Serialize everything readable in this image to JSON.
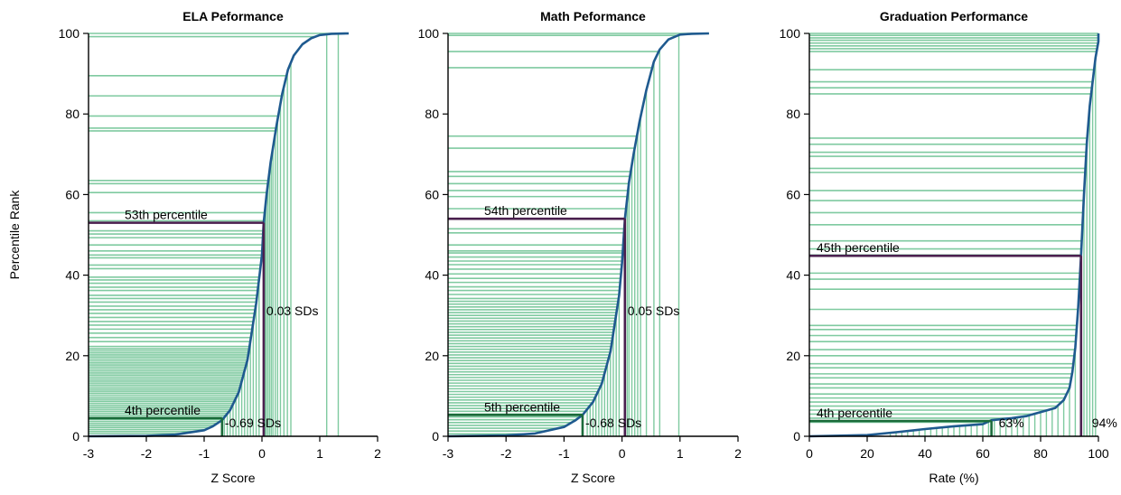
{
  "figure": {
    "ylabel": "Percentile Rank",
    "colors": {
      "hline": "#7fcaa0",
      "vline": "#7fcaa0",
      "curve": "#1f5a8f",
      "markerTop": "#4a1f4e",
      "markerBottom": "#1a6b3a",
      "axis": "#000000"
    }
  },
  "chart_data": [
    {
      "type": "line",
      "title": "ELA Peformance",
      "xlabel": "Z Score",
      "ylabel": "Percentile Rank",
      "xlim": [
        -3,
        2
      ],
      "ylim": [
        0,
        100
      ],
      "xticks": [
        -3,
        -2,
        -1,
        0,
        1,
        2
      ],
      "yticks": [
        0,
        20,
        40,
        60,
        80,
        100
      ],
      "curve": [
        [
          -3,
          0
        ],
        [
          -2,
          0.1
        ],
        [
          -1.5,
          0.4
        ],
        [
          -1.0,
          1.5
        ],
        [
          -0.85,
          2.5
        ],
        [
          -0.69,
          4
        ],
        [
          -0.55,
          6.5
        ],
        [
          -0.4,
          11
        ],
        [
          -0.25,
          19
        ],
        [
          -0.1,
          33
        ],
        [
          0,
          45
        ],
        [
          0.03,
          53
        ],
        [
          0.08,
          60
        ],
        [
          0.15,
          68
        ],
        [
          0.25,
          77
        ],
        [
          0.35,
          85
        ],
        [
          0.45,
          91
        ],
        [
          0.55,
          94.5
        ],
        [
          0.7,
          97.3
        ],
        [
          0.85,
          98.8
        ],
        [
          1.0,
          99.6
        ],
        [
          1.2,
          99.9
        ],
        [
          1.5,
          100
        ]
      ],
      "hlines": [
        100,
        99.2,
        89.5,
        84.5,
        79.5,
        76.5,
        75.8,
        63.5,
        62.7,
        60.5,
        55.5,
        53.5,
        51,
        50.2,
        49.3,
        47.5,
        46,
        45,
        44.3,
        42.5,
        41.6,
        39.5,
        38.8,
        38,
        37,
        36.2,
        35,
        34.2,
        33.3,
        32.3,
        31.4,
        30.5,
        29.5,
        28.5,
        27.6,
        26.6,
        25.6,
        24.5,
        23.5,
        22.3,
        21.7,
        21.2,
        20.7,
        20.2,
        19.7,
        19.2,
        18.7,
        18.2,
        17.7,
        17.2,
        16.7,
        16.2,
        15.7,
        15.2,
        14.7,
        14.2,
        13.7,
        13.2,
        12.7,
        12.2,
        11.7,
        11.2,
        10.7,
        10.2,
        9.7,
        9.2,
        8.7,
        8.2,
        7.7,
        7.2,
        6.7,
        6.2,
        5.7,
        5.2,
        4.7,
        4.2,
        3.7,
        3.2,
        2.7,
        2.2,
        1.7,
        1.2,
        0.7
      ],
      "vlines": [
        1.32,
        1.12,
        0.5,
        0.44,
        0.38,
        0.32,
        0.27,
        0.23,
        0.19,
        0.16,
        0.13,
        0.1,
        0.07,
        0.05,
        -0.05,
        -0.1,
        -0.15,
        -0.2,
        -0.25,
        -0.3,
        -0.35,
        -0.4,
        -0.45,
        -0.5,
        -0.55,
        -0.6,
        -0.65
      ],
      "markers": [
        {
          "percentile": 53,
          "x": 0.03,
          "percentile_label": "53th percentile",
          "x_label": "0.03 SDs",
          "role": "top"
        },
        {
          "percentile": 4.5,
          "x": -0.69,
          "percentile_label": "4th percentile",
          "x_label": "-0.69 SDs",
          "role": "bottom"
        }
      ]
    },
    {
      "type": "line",
      "title": "Math Peformance",
      "xlabel": "Z Score",
      "ylabel": "",
      "xlim": [
        -3,
        2
      ],
      "ylim": [
        0,
        100
      ],
      "xticks": [
        -3,
        -2,
        -1,
        0,
        1,
        2
      ],
      "yticks": [
        0,
        20,
        40,
        60,
        80,
        100
      ],
      "curve": [
        [
          -3,
          0
        ],
        [
          -2,
          0.2
        ],
        [
          -1.5,
          0.7
        ],
        [
          -1.0,
          2.3
        ],
        [
          -0.8,
          4
        ],
        [
          -0.68,
          5.3
        ],
        [
          -0.5,
          8.5
        ],
        [
          -0.35,
          13
        ],
        [
          -0.2,
          21
        ],
        [
          -0.05,
          35
        ],
        [
          0,
          43
        ],
        [
          0.05,
          54
        ],
        [
          0.12,
          63
        ],
        [
          0.2,
          70
        ],
        [
          0.3,
          78
        ],
        [
          0.42,
          86
        ],
        [
          0.55,
          93
        ],
        [
          0.65,
          96
        ],
        [
          0.8,
          98.5
        ],
        [
          1.0,
          99.7
        ],
        [
          1.2,
          99.9
        ],
        [
          1.5,
          100
        ]
      ],
      "hlines": [
        100,
        99.5,
        95.5,
        91.5,
        74.5,
        71.5,
        65.7,
        64.5,
        62.7,
        61,
        59.5,
        56.5,
        54,
        51.5,
        50.5,
        47.5,
        46,
        45.5,
        44.5,
        43.5,
        42.6,
        41.5,
        40.3,
        39.2,
        38.2,
        37.1,
        36.2,
        35.2,
        34.2,
        33.5,
        32.8,
        32.1,
        31.4,
        30.7,
        30,
        29.3,
        28.6,
        27.9,
        27.2,
        26.5,
        25.8,
        25.1,
        24.4,
        23.7,
        23,
        22.3,
        21.6,
        20.9,
        20.2,
        19.5,
        18.8,
        18.1,
        17.4,
        16.7,
        16,
        15.3,
        14.6,
        13.9,
        13.2,
        12.5,
        11.8,
        11.1,
        10.4,
        9.7,
        9,
        8.3,
        7.6,
        6.9,
        6.2,
        5.5,
        4.8,
        4.1,
        3.4,
        2.7,
        2,
        1.3,
        0.6
      ],
      "vlines": [
        0.98,
        0.65,
        0.55,
        0.42,
        0.32,
        0.27,
        0.22,
        0.17,
        0.12,
        0.09,
        -0.05,
        -0.1,
        -0.15,
        -0.2,
        -0.25,
        -0.3,
        -0.35,
        -0.4,
        -0.45,
        -0.5,
        -0.55,
        -0.6
      ],
      "markers": [
        {
          "percentile": 54,
          "x": 0.05,
          "percentile_label": "54th percentile",
          "x_label": "0.05 SDs",
          "role": "top"
        },
        {
          "percentile": 5.3,
          "x": -0.68,
          "percentile_label": "5th percentile",
          "x_label": "-0.68 SDs",
          "role": "bottom"
        }
      ]
    },
    {
      "type": "line",
      "title": "Graduation Performance",
      "xlabel": "Rate (%)",
      "ylabel": "",
      "xlim": [
        0,
        100
      ],
      "ylim": [
        0,
        100
      ],
      "xticks": [
        0,
        20,
        40,
        60,
        80,
        100
      ],
      "yticks": [
        0,
        20,
        40,
        60,
        80,
        100
      ],
      "curve": [
        [
          0,
          0
        ],
        [
          20,
          0.3
        ],
        [
          30,
          1
        ],
        [
          40,
          1.8
        ],
        [
          50,
          2.5
        ],
        [
          60,
          3
        ],
        [
          63,
          4
        ],
        [
          70,
          4.5
        ],
        [
          75,
          5
        ],
        [
          80,
          6
        ],
        [
          85,
          7
        ],
        [
          88,
          9
        ],
        [
          90,
          12
        ],
        [
          91,
          16
        ],
        [
          92,
          22
        ],
        [
          93,
          32
        ],
        [
          94,
          45
        ],
        [
          95,
          60
        ],
        [
          96,
          73
        ],
        [
          97,
          82
        ],
        [
          98,
          88
        ],
        [
          99,
          94
        ],
        [
          100,
          98
        ],
        [
          100,
          100
        ]
      ],
      "hlines": [
        100,
        99.5,
        98.9,
        98.3,
        97.6,
        96.9,
        96.2,
        95.5,
        91,
        88,
        86.5,
        85,
        74,
        72.5,
        70.5,
        69.5,
        66.5,
        65.5,
        61,
        58.5,
        55.5,
        52.5,
        48.5,
        46.5,
        45,
        40.5,
        39,
        36.5,
        31.5,
        27.5,
        26.5,
        25,
        23.5,
        21.5,
        20,
        18,
        17,
        15.5,
        14.5,
        13,
        12,
        10.5,
        9.5,
        8.5,
        7.5,
        6.5,
        5.5,
        4.5,
        3.5
      ],
      "vlines": [
        99,
        98,
        97,
        96,
        95,
        94,
        92,
        90,
        88,
        86,
        84,
        82,
        80,
        78,
        76,
        74,
        72,
        70,
        68,
        66,
        64,
        62,
        60,
        58,
        56,
        54,
        52,
        50,
        48,
        46,
        44,
        42,
        40,
        38,
        36,
        34,
        32,
        30,
        28
      ],
      "markers": [
        {
          "percentile": 44.8,
          "x": 94,
          "percentile_label": "45th percentile",
          "x_label": "94%",
          "role": "top"
        },
        {
          "percentile": 3.8,
          "x": 63,
          "percentile_label": "4th percentile",
          "x_label": "63%",
          "role": "bottom"
        }
      ]
    }
  ]
}
